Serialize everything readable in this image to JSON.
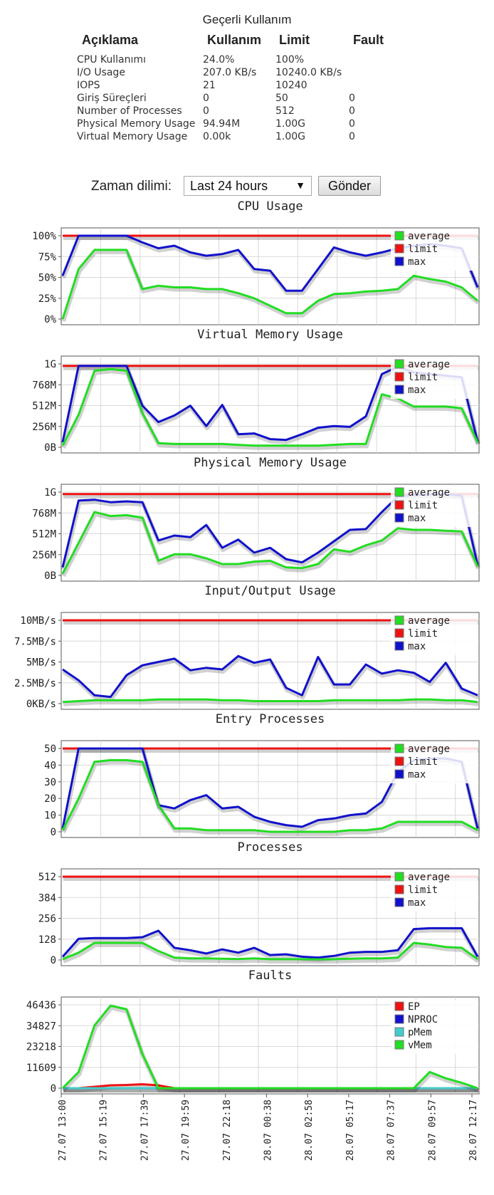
{
  "usage": {
    "caption": "Geçerli Kullanım",
    "headers": [
      "Açıklama",
      "Kullanım",
      "Limit",
      "Fault"
    ],
    "rows": [
      {
        "name": "CPU Kullanımı",
        "usage": "24.0%",
        "limit": "100%",
        "fault": ""
      },
      {
        "name": "I/O Usage",
        "usage": "207.0 KB/s",
        "limit": "10240.0 KB/s",
        "fault": ""
      },
      {
        "name": "IOPS",
        "usage": "21",
        "limit": "10240",
        "fault": ""
      },
      {
        "name": "Giriş Süreçleri",
        "usage": "0",
        "limit": "50",
        "fault": "0"
      },
      {
        "name": "Number of Processes",
        "usage": "0",
        "limit": "512",
        "fault": "0"
      },
      {
        "name": "Physical Memory Usage",
        "usage": "94.94M",
        "limit": "1.00G",
        "fault": "0"
      },
      {
        "name": "Virtual Memory Usage",
        "usage": "0.00k",
        "limit": "1.00G",
        "fault": "0"
      }
    ]
  },
  "period": {
    "label": "Zaman dilimi:",
    "selected": "Last 24 hours",
    "submit": "Gönder"
  },
  "colors": {
    "average": "#22dd22",
    "limit": "#ee1111",
    "max": "#1111cc",
    "pmem": "#44cccc"
  },
  "chart_data": [
    {
      "type": "line",
      "title": "CPU Usage",
      "yticks": [
        "0%",
        "25%",
        "50%",
        "75%",
        "100%"
      ],
      "ylim": [
        0,
        100
      ],
      "legend": [
        "average",
        "limit",
        "max"
      ],
      "series": [
        {
          "name": "limit",
          "values": [
            100,
            100,
            100,
            100,
            100,
            100,
            100,
            100,
            100,
            100,
            100,
            100,
            100,
            100,
            100,
            100,
            100,
            100,
            100,
            100,
            100,
            100,
            100,
            100,
            100,
            100,
            100
          ]
        },
        {
          "name": "max",
          "values": [
            52,
            100,
            100,
            100,
            100,
            92,
            85,
            88,
            80,
            76,
            78,
            83,
            60,
            58,
            34,
            34,
            60,
            86,
            80,
            76,
            80,
            85,
            88,
            90,
            88,
            85,
            38
          ]
        },
        {
          "name": "average",
          "values": [
            0,
            60,
            83,
            83,
            83,
            36,
            40,
            38,
            38,
            36,
            36,
            31,
            25,
            16,
            7,
            7,
            22,
            30,
            31,
            33,
            34,
            36,
            52,
            48,
            45,
            38,
            22
          ]
        }
      ]
    },
    {
      "type": "line",
      "title": "Virtual Memory Usage",
      "yticks": [
        "0B",
        "256M",
        "512M",
        "768M",
        "1G"
      ],
      "ylim": [
        0,
        1024
      ],
      "legend": [
        "average",
        "limit",
        "max"
      ],
      "series": [
        {
          "name": "limit",
          "values": [
            1000,
            1000,
            1000,
            1000,
            1000,
            1000,
            1000,
            1000,
            1000,
            1000,
            1000,
            1000,
            1000,
            1000,
            1000,
            1000,
            1000,
            1000,
            1000,
            1000,
            1000,
            1000,
            1000,
            1000,
            1000,
            1000,
            1000
          ]
        },
        {
          "name": "max",
          "values": [
            60,
            1000,
            1000,
            1000,
            1000,
            510,
            310,
            390,
            510,
            260,
            520,
            160,
            170,
            100,
            90,
            160,
            240,
            260,
            250,
            380,
            900,
            990,
            920,
            900,
            880,
            860,
            70
          ]
        },
        {
          "name": "average",
          "values": [
            20,
            400,
            940,
            960,
            940,
            420,
            50,
            40,
            40,
            40,
            40,
            30,
            20,
            20,
            20,
            20,
            20,
            30,
            40,
            40,
            650,
            600,
            500,
            500,
            500,
            480,
            60
          ]
        }
      ]
    },
    {
      "type": "line",
      "title": "Physical Memory Usage",
      "yticks": [
        "0B",
        "256M",
        "512M",
        "768M",
        "1G"
      ],
      "ylim": [
        0,
        1024
      ],
      "legend": [
        "average",
        "limit",
        "max"
      ],
      "series": [
        {
          "name": "limit",
          "values": [
            1000,
            1000,
            1000,
            1000,
            1000,
            1000,
            1000,
            1000,
            1000,
            1000,
            1000,
            1000,
            1000,
            1000,
            1000,
            1000,
            1000,
            1000,
            1000,
            1000,
            1000,
            1000,
            1000,
            1000,
            1000,
            1000,
            1000
          ]
        },
        {
          "name": "max",
          "values": [
            100,
            920,
            930,
            900,
            910,
            900,
            430,
            490,
            470,
            620,
            340,
            440,
            280,
            340,
            200,
            160,
            280,
            420,
            560,
            570,
            780,
            970,
            990,
            1000,
            1000,
            980,
            130
          ]
        },
        {
          "name": "average",
          "values": [
            20,
            400,
            780,
            730,
            740,
            710,
            180,
            260,
            260,
            210,
            140,
            140,
            170,
            180,
            100,
            90,
            140,
            320,
            290,
            370,
            430,
            580,
            560,
            560,
            550,
            540,
            110
          ]
        }
      ]
    },
    {
      "type": "line",
      "title": "Input/Output Usage",
      "yticks": [
        "0KB/s",
        "2.5MB/s",
        "5MB/s",
        "7.5MB/s",
        "10MB/s"
      ],
      "ylim": [
        0,
        10
      ],
      "legend": [
        "average",
        "limit",
        "max"
      ],
      "series": [
        {
          "name": "limit",
          "values": [
            10,
            10,
            10,
            10,
            10,
            10,
            10,
            10,
            10,
            10,
            10,
            10,
            10,
            10,
            10,
            10,
            10,
            10,
            10,
            10,
            10,
            10,
            10,
            10,
            10,
            10,
            10
          ]
        },
        {
          "name": "max",
          "values": [
            4.1,
            2.8,
            1.0,
            0.8,
            3.4,
            4.6,
            5.0,
            5.4,
            4.0,
            4.3,
            4.1,
            5.7,
            4.9,
            5.3,
            1.9,
            1.0,
            5.6,
            2.3,
            2.3,
            4.7,
            3.6,
            4.0,
            3.7,
            2.6,
            4.9,
            1.8,
            1.0
          ]
        },
        {
          "name": "average",
          "values": [
            0.2,
            0.3,
            0.4,
            0.4,
            0.4,
            0.4,
            0.5,
            0.5,
            0.5,
            0.5,
            0.4,
            0.4,
            0.3,
            0.3,
            0.3,
            0.3,
            0.3,
            0.4,
            0.4,
            0.4,
            0.4,
            0.4,
            0.5,
            0.5,
            0.4,
            0.4,
            0.2
          ]
        }
      ]
    },
    {
      "type": "line",
      "title": "Entry Processes",
      "yticks": [
        "0",
        "10",
        "20",
        "30",
        "40",
        "50"
      ],
      "ylim": [
        0,
        50
      ],
      "legend": [
        "average",
        "limit",
        "max"
      ],
      "series": [
        {
          "name": "limit",
          "values": [
            50,
            50,
            50,
            50,
            50,
            50,
            50,
            50,
            50,
            50,
            50,
            50,
            50,
            50,
            50,
            50,
            50,
            50,
            50,
            50,
            50,
            50,
            50,
            50,
            50,
            50,
            50
          ]
        },
        {
          "name": "max",
          "values": [
            2,
            50,
            50,
            50,
            50,
            50,
            16,
            14,
            19,
            22,
            14,
            15,
            9,
            6,
            4,
            3,
            7,
            8,
            10,
            11,
            18,
            36,
            43,
            44,
            44,
            42,
            2
          ]
        },
        {
          "name": "average",
          "values": [
            1,
            20,
            42,
            43,
            43,
            42,
            16,
            2,
            2,
            1,
            1,
            1,
            1,
            0,
            0,
            0,
            0,
            0,
            1,
            1,
            2,
            6,
            6,
            6,
            6,
            6,
            1
          ]
        }
      ]
    },
    {
      "type": "line",
      "title": "Processes",
      "yticks": [
        "0",
        "128",
        "256",
        "384",
        "512"
      ],
      "ylim": [
        0,
        512
      ],
      "legend": [
        "average",
        "limit",
        "max"
      ],
      "series": [
        {
          "name": "limit",
          "values": [
            512,
            512,
            512,
            512,
            512,
            512,
            512,
            512,
            512,
            512,
            512,
            512,
            512,
            512,
            512,
            512,
            512,
            512,
            512,
            512,
            512,
            512,
            512,
            512,
            512,
            512,
            512
          ]
        },
        {
          "name": "max",
          "values": [
            20,
            130,
            135,
            135,
            135,
            140,
            180,
            75,
            60,
            40,
            65,
            45,
            75,
            30,
            35,
            20,
            15,
            25,
            45,
            50,
            50,
            60,
            190,
            195,
            195,
            195,
            20
          ]
        },
        {
          "name": "average",
          "values": [
            5,
            45,
            105,
            105,
            105,
            105,
            55,
            15,
            10,
            10,
            8,
            6,
            10,
            5,
            5,
            5,
            4,
            5,
            8,
            10,
            10,
            15,
            105,
            95,
            80,
            75,
            5
          ]
        }
      ]
    },
    {
      "type": "line",
      "title": "Faults",
      "yticks": [
        "0",
        "11609",
        "23218",
        "34827",
        "46436"
      ],
      "ylim": [
        0,
        46436
      ],
      "legend": [
        "EP",
        "NPROC",
        "pMem",
        "vMem"
      ],
      "series": [
        {
          "name": "EP",
          "values": [
            0,
            0,
            800,
            1600,
            1800,
            2200,
            1600,
            0,
            0,
            0,
            0,
            0,
            0,
            0,
            0,
            0,
            0,
            0,
            0,
            0,
            0,
            0,
            0,
            0,
            0,
            0,
            0
          ]
        },
        {
          "name": "NPROC",
          "values": [
            0,
            0,
            0,
            0,
            0,
            0,
            0,
            0,
            0,
            0,
            0,
            0,
            0,
            0,
            0,
            0,
            0,
            0,
            0,
            0,
            0,
            0,
            0,
            0,
            0,
            0,
            0
          ]
        },
        {
          "name": "pMem",
          "values": [
            0,
            0,
            0,
            0,
            0,
            0,
            0,
            0,
            0,
            0,
            0,
            0,
            0,
            0,
            0,
            0,
            0,
            0,
            0,
            0,
            0,
            0,
            0,
            0,
            0,
            0,
            0
          ]
        },
        {
          "name": "vMem",
          "values": [
            0,
            9000,
            35000,
            46000,
            44000,
            19000,
            0,
            0,
            0,
            0,
            0,
            0,
            0,
            0,
            0,
            0,
            0,
            0,
            0,
            0,
            0,
            0,
            0,
            9000,
            5500,
            3000,
            0
          ]
        }
      ],
      "xticks": [
        "27.07 13:00",
        "27.07 15:19",
        "27.07 17:39",
        "27.07 19:59",
        "27.07 22:18",
        "28.07 00:38",
        "28.07 02:58",
        "28.07 05:17",
        "28.07 07:37",
        "28.07 09:57",
        "28.07 12:17"
      ]
    }
  ]
}
